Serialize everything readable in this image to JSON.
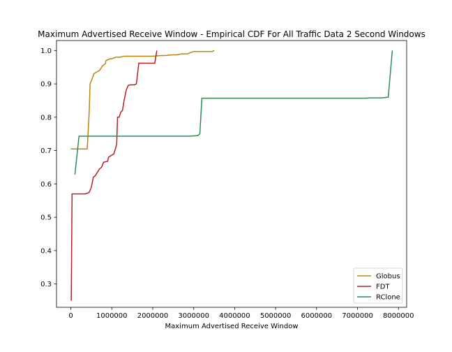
{
  "chart_data": {
    "type": "line",
    "title": "Maximum Advertised Receive Window - Empirical CDF For All Traffic Data 2 Second Windows",
    "xlabel": "Maximum Advertised Receive Window",
    "ylabel": "",
    "xlim": [
      -350000,
      8200000
    ],
    "ylim": [
      0.23,
      1.03
    ],
    "xticks": [
      0,
      1000000,
      2000000,
      3000000,
      4000000,
      5000000,
      6000000,
      7000000,
      8000000
    ],
    "xtick_labels": [
      "0",
      "1000000",
      "2000000",
      "3000000",
      "4000000",
      "5000000",
      "6000000",
      "7000000",
      "8000000"
    ],
    "yticks": [
      0.3,
      0.4,
      0.5,
      0.6,
      0.7,
      0.8,
      0.9,
      1.0
    ],
    "ytick_labels": [
      "0.3",
      "0.4",
      "0.5",
      "0.6",
      "0.7",
      "0.8",
      "0.9",
      "1.0"
    ],
    "grid": false,
    "legend_position": "bottom-right",
    "series": [
      {
        "name": "Globus",
        "color": "#b8860b",
        "points": [
          [
            0,
            0.705
          ],
          [
            350000,
            0.705
          ],
          [
            400000,
            0.705
          ],
          [
            420000,
            0.75
          ],
          [
            450000,
            0.82
          ],
          [
            470000,
            0.9
          ],
          [
            520000,
            0.915
          ],
          [
            560000,
            0.93
          ],
          [
            620000,
            0.935
          ],
          [
            700000,
            0.94
          ],
          [
            780000,
            0.955
          ],
          [
            840000,
            0.96
          ],
          [
            860000,
            0.97
          ],
          [
            950000,
            0.975
          ],
          [
            1000000,
            0.975
          ],
          [
            1100000,
            0.98
          ],
          [
            1200000,
            0.98
          ],
          [
            1300000,
            0.983
          ],
          [
            1500000,
            0.983
          ],
          [
            2000000,
            0.983
          ],
          [
            2200000,
            0.985
          ],
          [
            2300000,
            0.985
          ],
          [
            2500000,
            0.987
          ],
          [
            2600000,
            0.987
          ],
          [
            2700000,
            0.99
          ],
          [
            2850000,
            0.99
          ],
          [
            2950000,
            0.995
          ],
          [
            3000000,
            0.997
          ],
          [
            3400000,
            0.997
          ],
          [
            3450000,
            0.997
          ],
          [
            3500000,
            1.0
          ]
        ]
      },
      {
        "name": "FDT",
        "color": "#b22222",
        "points": [
          [
            10000,
            0.25
          ],
          [
            30000,
            0.57
          ],
          [
            350000,
            0.57
          ],
          [
            400000,
            0.572
          ],
          [
            450000,
            0.575
          ],
          [
            500000,
            0.59
          ],
          [
            550000,
            0.62
          ],
          [
            600000,
            0.625
          ],
          [
            650000,
            0.635
          ],
          [
            700000,
            0.645
          ],
          [
            750000,
            0.65
          ],
          [
            800000,
            0.665
          ],
          [
            900000,
            0.668
          ],
          [
            920000,
            0.68
          ],
          [
            980000,
            0.685
          ],
          [
            1050000,
            0.69
          ],
          [
            1100000,
            0.71
          ],
          [
            1120000,
            0.72
          ],
          [
            1140000,
            0.8
          ],
          [
            1180000,
            0.8
          ],
          [
            1220000,
            0.815
          ],
          [
            1260000,
            0.82
          ],
          [
            1300000,
            0.85
          ],
          [
            1350000,
            0.88
          ],
          [
            1400000,
            0.895
          ],
          [
            1450000,
            0.897
          ],
          [
            1550000,
            0.897
          ],
          [
            1600000,
            0.9
          ],
          [
            1620000,
            0.92
          ],
          [
            1660000,
            0.962
          ],
          [
            2050000,
            0.962
          ],
          [
            2100000,
            1.0
          ]
        ]
      },
      {
        "name": "RClone",
        "color": "#2e8b57",
        "points": [
          [
            100000,
            0.628
          ],
          [
            200000,
            0.743
          ],
          [
            2900000,
            0.743
          ],
          [
            3100000,
            0.745
          ],
          [
            3150000,
            0.75
          ],
          [
            3200000,
            0.857
          ],
          [
            7200000,
            0.857
          ],
          [
            7300000,
            0.858
          ],
          [
            7600000,
            0.858
          ],
          [
            7750000,
            0.86
          ],
          [
            7850000,
            1.0
          ]
        ]
      }
    ]
  }
}
